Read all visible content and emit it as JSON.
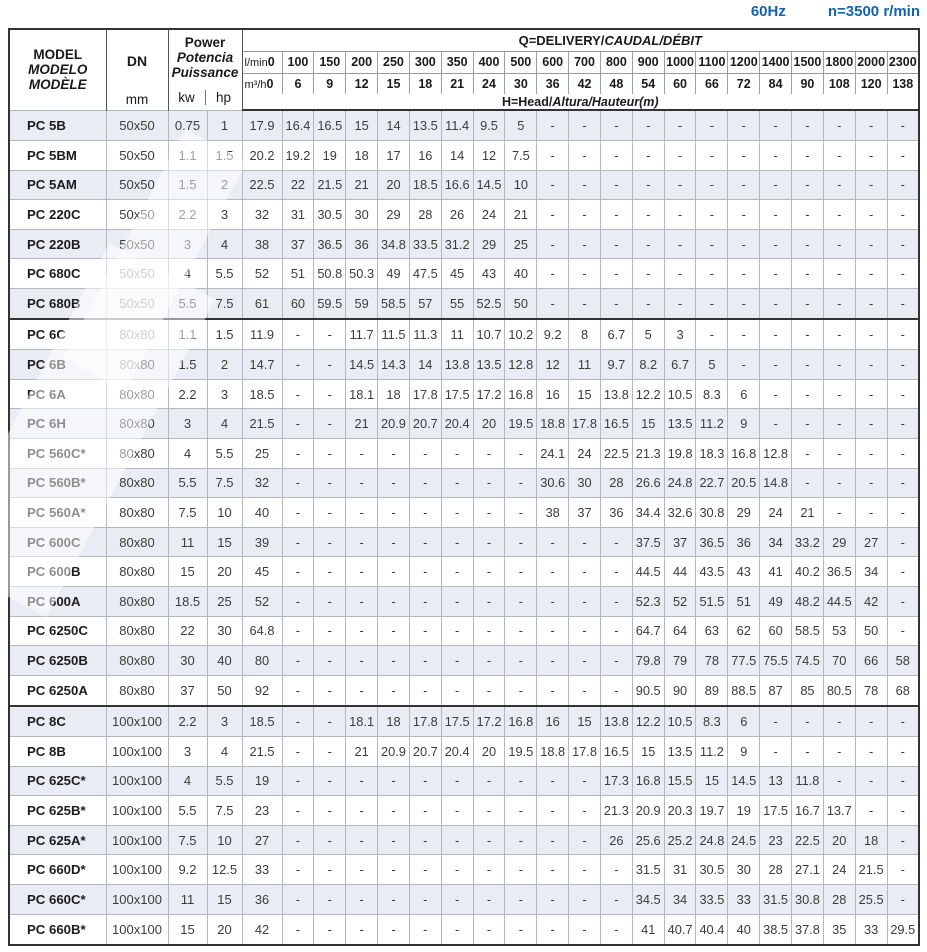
{
  "meta": {
    "frequency_label": "60Hz",
    "speed_label": "n=3500 r/min"
  },
  "colors": {
    "accent_blue": "#1164b0",
    "row_shade": "#e9ecf3"
  },
  "table": {
    "header": {
      "model_lines": [
        "MODEL",
        "MODELO",
        "MODÈLE"
      ],
      "dn_label": "DN",
      "dn_unit": "mm",
      "power_lines": [
        "Power",
        "Potencia",
        "Puissance"
      ],
      "power_unit_kw": "kw",
      "power_unit_hp": "hp",
      "q_title_main": "Q=DELIVERY/",
      "q_title_italic": "CAUDAL/DÉBIT",
      "lmin_label": "l/min",
      "m3h_label": "m³/h",
      "lmin": [
        "0",
        "100",
        "150",
        "200",
        "250",
        "300",
        "350",
        "400",
        "500",
        "600",
        "700",
        "800",
        "900",
        "1000",
        "1100",
        "1200",
        "1400",
        "1500",
        "1800",
        "2000",
        "2300"
      ],
      "m3h": [
        "0",
        "6",
        "9",
        "12",
        "15",
        "18",
        "21",
        "24",
        "30",
        "36",
        "42",
        "48",
        "54",
        "60",
        "66",
        "72",
        "84",
        "90",
        "108",
        "120",
        "138"
      ],
      "head_note_main": "H=Head/",
      "head_note_italic": "Altura/Hauteur(m)"
    },
    "rows": [
      {
        "model": "PC 5B",
        "dn": "50x50",
        "kw": "0.75",
        "hp": "1",
        "values": [
          "17.9",
          "16.4",
          "16.5",
          "15",
          "14",
          "13.5",
          "11.4",
          "9.5",
          "5",
          "-",
          "-",
          "-",
          "-",
          "-",
          "-",
          "-",
          "-",
          "-",
          "-",
          "-",
          "-"
        ]
      },
      {
        "model": "PC 5BM",
        "dn": "50x50",
        "kw": "1.1",
        "hp": "1.5",
        "values": [
          "20.2",
          "19.2",
          "19",
          "18",
          "17",
          "16",
          "14",
          "12",
          "7.5",
          "-",
          "-",
          "-",
          "-",
          "-",
          "-",
          "-",
          "-",
          "-",
          "-",
          "-",
          "-"
        ]
      },
      {
        "model": "PC 5AM",
        "dn": "50x50",
        "kw": "1.5",
        "hp": "2",
        "values": [
          "22.5",
          "22",
          "21.5",
          "21",
          "20",
          "18.5",
          "16.6",
          "14.5",
          "10",
          "-",
          "-",
          "-",
          "-",
          "-",
          "-",
          "-",
          "-",
          "-",
          "-",
          "-",
          "-"
        ]
      },
      {
        "model": "PC 220C",
        "dn": "50x50",
        "kw": "2.2",
        "hp": "3",
        "values": [
          "32",
          "31",
          "30.5",
          "30",
          "29",
          "28",
          "26",
          "24",
          "21",
          "-",
          "-",
          "-",
          "-",
          "-",
          "-",
          "-",
          "-",
          "-",
          "-",
          "-",
          "-"
        ]
      },
      {
        "model": "PC 220B",
        "dn": "50x50",
        "kw": "3",
        "hp": "4",
        "values": [
          "38",
          "37",
          "36.5",
          "36",
          "34.8",
          "33.5",
          "31.2",
          "29",
          "25",
          "-",
          "-",
          "-",
          "-",
          "-",
          "-",
          "-",
          "-",
          "-",
          "-",
          "-",
          "-"
        ]
      },
      {
        "model": "PC 680C",
        "dn": "50x50",
        "kw": "4",
        "hp": "5.5",
        "values": [
          "52",
          "51",
          "50.8",
          "50.3",
          "49",
          "47.5",
          "45",
          "43",
          "40",
          "-",
          "-",
          "-",
          "-",
          "-",
          "-",
          "-",
          "-",
          "-",
          "-",
          "-",
          "-"
        ]
      },
      {
        "model": "PC 680B",
        "dn": "50x50",
        "kw": "5.5",
        "hp": "7.5",
        "values": [
          "61",
          "60",
          "59.5",
          "59",
          "58.5",
          "57",
          "55",
          "52.5",
          "50",
          "-",
          "-",
          "-",
          "-",
          "-",
          "-",
          "-",
          "-",
          "-",
          "-",
          "-",
          "-"
        ]
      },
      {
        "model": "PC 6C",
        "dn": "80x80",
        "kw": "1.1",
        "hp": "1.5",
        "values": [
          "11.9",
          "-",
          "-",
          "11.7",
          "11.5",
          "11.3",
          "11",
          "10.7",
          "10.2",
          "9.2",
          "8",
          "6.7",
          "5",
          "3",
          "-",
          "-",
          "-",
          "-",
          "-",
          "-",
          "-"
        ]
      },
      {
        "model": "PC 6B",
        "dn": "80x80",
        "kw": "1.5",
        "hp": "2",
        "values": [
          "14.7",
          "-",
          "-",
          "14.5",
          "14.3",
          "14",
          "13.8",
          "13.5",
          "12.8",
          "12",
          "11",
          "9.7",
          "8.2",
          "6.7",
          "5",
          "-",
          "-",
          "-",
          "-",
          "-",
          "-"
        ]
      },
      {
        "model": "PC 6A",
        "dn": "80x80",
        "kw": "2.2",
        "hp": "3",
        "values": [
          "18.5",
          "-",
          "-",
          "18.1",
          "18",
          "17.8",
          "17.5",
          "17.2",
          "16.8",
          "16",
          "15",
          "13.8",
          "12.2",
          "10.5",
          "8.3",
          "6",
          "-",
          "-",
          "-",
          "-",
          "-"
        ]
      },
      {
        "model": "PC 6H",
        "dn": "80x80",
        "kw": "3",
        "hp": "4",
        "values": [
          "21.5",
          "-",
          "-",
          "21",
          "20.9",
          "20.7",
          "20.4",
          "20",
          "19.5",
          "18.8",
          "17.8",
          "16.5",
          "15",
          "13.5",
          "11.2",
          "9",
          "-",
          "-",
          "-",
          "-",
          "-"
        ]
      },
      {
        "model": "PC 560C*",
        "dn": "80x80",
        "kw": "4",
        "hp": "5.5",
        "values": [
          "25",
          "-",
          "-",
          "-",
          "-",
          "-",
          "-",
          "-",
          "-",
          "24.1",
          "24",
          "22.5",
          "21.3",
          "19.8",
          "18.3",
          "16.8",
          "12.8",
          "-",
          "-",
          "-",
          "-"
        ]
      },
      {
        "model": "PC 560B*",
        "dn": "80x80",
        "kw": "5.5",
        "hp": "7.5",
        "values": [
          "32",
          "-",
          "-",
          "-",
          "-",
          "-",
          "-",
          "-",
          "-",
          "30.6",
          "30",
          "28",
          "26.6",
          "24.8",
          "22.7",
          "20.5",
          "14.8",
          "-",
          "-",
          "-",
          "-"
        ]
      },
      {
        "model": "PC 560A*",
        "dn": "80x80",
        "kw": "7.5",
        "hp": "10",
        "values": [
          "40",
          "-",
          "-",
          "-",
          "-",
          "-",
          "-",
          "-",
          "-",
          "38",
          "37",
          "36",
          "34.4",
          "32.6",
          "30.8",
          "29",
          "24",
          "21",
          "-",
          "-",
          "-"
        ]
      },
      {
        "model": "PC 600C",
        "dn": "80x80",
        "kw": "11",
        "hp": "15",
        "values": [
          "39",
          "-",
          "-",
          "-",
          "-",
          "-",
          "-",
          "-",
          "-",
          "-",
          "-",
          "-",
          "37.5",
          "37",
          "36.5",
          "36",
          "34",
          "33.2",
          "29",
          "27",
          "-"
        ]
      },
      {
        "model": "PC 600B",
        "dn": "80x80",
        "kw": "15",
        "hp": "20",
        "values": [
          "45",
          "-",
          "-",
          "-",
          "-",
          "-",
          "-",
          "-",
          "-",
          "-",
          "-",
          "-",
          "44.5",
          "44",
          "43.5",
          "43",
          "41",
          "40.2",
          "36.5",
          "34",
          "-"
        ]
      },
      {
        "model": "PC 600A",
        "dn": "80x80",
        "kw": "18.5",
        "hp": "25",
        "values": [
          "52",
          "-",
          "-",
          "-",
          "-",
          "-",
          "-",
          "-",
          "-",
          "-",
          "-",
          "-",
          "52.3",
          "52",
          "51.5",
          "51",
          "49",
          "48.2",
          "44.5",
          "42",
          "-"
        ]
      },
      {
        "model": "PC 6250C",
        "dn": "80x80",
        "kw": "22",
        "hp": "30",
        "values": [
          "64.8",
          "-",
          "-",
          "-",
          "-",
          "-",
          "-",
          "-",
          "-",
          "-",
          "-",
          "-",
          "64.7",
          "64",
          "63",
          "62",
          "60",
          "58.5",
          "53",
          "50",
          "-"
        ]
      },
      {
        "model": "PC 6250B",
        "dn": "80x80",
        "kw": "30",
        "hp": "40",
        "values": [
          "80",
          "-",
          "-",
          "-",
          "-",
          "-",
          "-",
          "-",
          "-",
          "-",
          "-",
          "-",
          "79.8",
          "79",
          "78",
          "77.5",
          "75.5",
          "74.5",
          "70",
          "66",
          "58"
        ]
      },
      {
        "model": "PC 6250A",
        "dn": "80x80",
        "kw": "37",
        "hp": "50",
        "values": [
          "92",
          "-",
          "-",
          "-",
          "-",
          "-",
          "-",
          "-",
          "-",
          "-",
          "-",
          "-",
          "90.5",
          "90",
          "89",
          "88.5",
          "87",
          "85",
          "80.5",
          "78",
          "68"
        ]
      },
      {
        "model": "PC 8C",
        "dn": "100x100",
        "kw": "2.2",
        "hp": "3",
        "values": [
          "18.5",
          "-",
          "-",
          "18.1",
          "18",
          "17.8",
          "17.5",
          "17.2",
          "16.8",
          "16",
          "15",
          "13.8",
          "12.2",
          "10.5",
          "8.3",
          "6",
          "-",
          "-",
          "-",
          "-",
          "-"
        ]
      },
      {
        "model": "PC 8B",
        "dn": "100x100",
        "kw": "3",
        "hp": "4",
        "values": [
          "21.5",
          "-",
          "-",
          "21",
          "20.9",
          "20.7",
          "20.4",
          "20",
          "19.5",
          "18.8",
          "17.8",
          "16.5",
          "15",
          "13.5",
          "11.2",
          "9",
          "-",
          "-",
          "-",
          "-",
          "-"
        ]
      },
      {
        "model": "PC 625C*",
        "dn": "100x100",
        "kw": "4",
        "hp": "5.5",
        "values": [
          "19",
          "-",
          "-",
          "-",
          "-",
          "-",
          "-",
          "-",
          "-",
          "-",
          "-",
          "17.3",
          "16.8",
          "15.5",
          "15",
          "14.5",
          "13",
          "11.8",
          "-",
          "-",
          "-"
        ]
      },
      {
        "model": "PC 625B*",
        "dn": "100x100",
        "kw": "5.5",
        "hp": "7.5",
        "values": [
          "23",
          "-",
          "-",
          "-",
          "-",
          "-",
          "-",
          "-",
          "-",
          "-",
          "-",
          "21.3",
          "20.9",
          "20.3",
          "19.7",
          "19",
          "17.5",
          "16.7",
          "13.7",
          "-",
          "-"
        ]
      },
      {
        "model": "PC 625A*",
        "dn": "100x100",
        "kw": "7.5",
        "hp": "10",
        "values": [
          "27",
          "-",
          "-",
          "-",
          "-",
          "-",
          "-",
          "-",
          "-",
          "-",
          "-",
          "26",
          "25.6",
          "25.2",
          "24.8",
          "24.5",
          "23",
          "22.5",
          "20",
          "18",
          "-"
        ]
      },
      {
        "model": "PC 660D*",
        "dn": "100x100",
        "kw": "9.2",
        "hp": "12.5",
        "values": [
          "33",
          "-",
          "-",
          "-",
          "-",
          "-",
          "-",
          "-",
          "-",
          "-",
          "-",
          "-",
          "31.5",
          "31",
          "30.5",
          "30",
          "28",
          "27.1",
          "24",
          "21.5",
          "-"
        ]
      },
      {
        "model": "PC 660C*",
        "dn": "100x100",
        "kw": "11",
        "hp": "15",
        "values": [
          "36",
          "-",
          "-",
          "-",
          "-",
          "-",
          "-",
          "-",
          "-",
          "-",
          "-",
          "-",
          "34.5",
          "34",
          "33.5",
          "33",
          "31.5",
          "30.8",
          "28",
          "25.5",
          "-"
        ]
      },
      {
        "model": "PC 660B*",
        "dn": "100x100",
        "kw": "15",
        "hp": "20",
        "values": [
          "42",
          "-",
          "-",
          "-",
          "-",
          "-",
          "-",
          "-",
          "-",
          "-",
          "-",
          "-",
          "41",
          "40.7",
          "40.4",
          "40",
          "38.5",
          "37.8",
          "35",
          "33",
          "29.5"
        ]
      }
    ]
  }
}
